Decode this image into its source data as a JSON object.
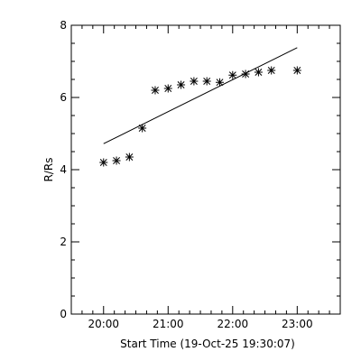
{
  "chart_data": {
    "type": "scatter",
    "xlabel": "Start Time (19-Oct-25 19:30:07)",
    "ylabel": "R/Rs",
    "xlim": [
      "19:30",
      "23:40"
    ],
    "ylim": [
      0,
      8
    ],
    "x_ticks": [
      "20:00",
      "21:00",
      "22:00",
      "23:00"
    ],
    "y_ticks": [
      0,
      2,
      4,
      6,
      8
    ],
    "grid": false,
    "legend": "none",
    "series": [
      {
        "marker": "asterisk",
        "x": [
          "20:00",
          "20:12",
          "20:24",
          "20:36",
          "20:48",
          "21:00",
          "21:12",
          "21:24",
          "21:36",
          "21:48",
          "22:00",
          "22:12",
          "22:24",
          "22:36",
          "23:00"
        ],
        "y": [
          4.2,
          4.25,
          4.35,
          5.15,
          6.2,
          6.25,
          6.35,
          6.45,
          6.45,
          6.42,
          6.62,
          6.65,
          6.7,
          6.75,
          6.75
        ]
      },
      {
        "marker": "line",
        "x": [
          "20:00",
          "23:00"
        ],
        "y": [
          4.72,
          7.38
        ]
      }
    ]
  }
}
